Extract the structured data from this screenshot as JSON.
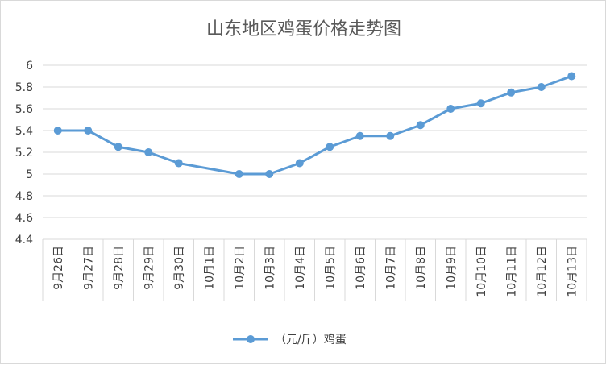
{
  "chart_data": {
    "type": "line",
    "title": "山东地区鸡蛋价格走势图",
    "categories": [
      "9月26日",
      "9月27日",
      "9月28日",
      "9月29日",
      "9月30日",
      "10月1日",
      "10月2日",
      "10月3日",
      "10月4日",
      "10月5日",
      "10月6日",
      "10月7日",
      "10月8日",
      "10月9日",
      "10月10日",
      "10月11日",
      "10月12日",
      "10月13日"
    ],
    "series": [
      {
        "name": "（元/斤）鸡蛋",
        "values": [
          5.4,
          5.4,
          5.25,
          5.2,
          5.1,
          null,
          5.0,
          5.0,
          5.1,
          5.25,
          5.35,
          5.35,
          5.45,
          5.6,
          5.65,
          5.75,
          5.8,
          5.9
        ],
        "color": "#5b9bd5"
      }
    ],
    "ylim": [
      4.4,
      6
    ],
    "yticks": [
      "4.4",
      "4.6",
      "4.8",
      "5",
      "5.2",
      "5.4",
      "5.6",
      "5.8",
      "6"
    ],
    "grid": true,
    "legend": "bottom"
  }
}
